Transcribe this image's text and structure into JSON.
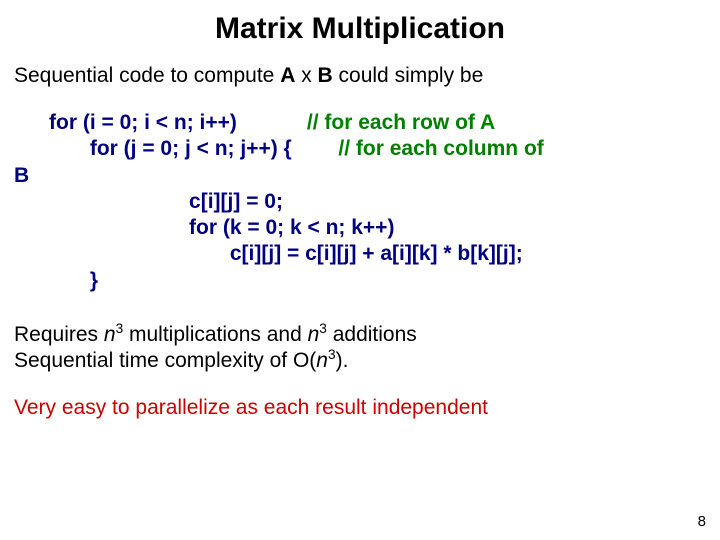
{
  "title": "Matrix Multiplication",
  "intro_prefix": "Sequential code to compute ",
  "intro_suffix": " could simply be",
  "expr_A": "A",
  "expr_x": " x ",
  "expr_B": "B",
  "code": {
    "l1a": "      for (i = 0; i < n; i++)            ",
    "l1c": "// for each row of A",
    "l2a": "             for (j = 0; j < n; j++) {        ",
    "l2c": "// for each column of",
    "l3": "B",
    "l4": "                              c[i][j] = 0;",
    "l5": "                              for (k = 0; k < n; k++)",
    "l6": "                                     c[i][j] = c[i][j] + a[i][k] * b[k][j];",
    "l7": "             }"
  },
  "req_p1": "Requires ",
  "req_n": "n",
  "req_exp": "3",
  "req_mid": " multiplications and ",
  "req_end": " additions",
  "complexity_pre": "Sequential time complexity of O(",
  "complexity_post": ").",
  "parallel": "Very easy to parallelize as each result independent",
  "pagenum": "8",
  "colors": {
    "code": "#000080",
    "comment": "#008000",
    "parallel": "#cc0000",
    "text": "#000000",
    "background": "#ffffff"
  }
}
